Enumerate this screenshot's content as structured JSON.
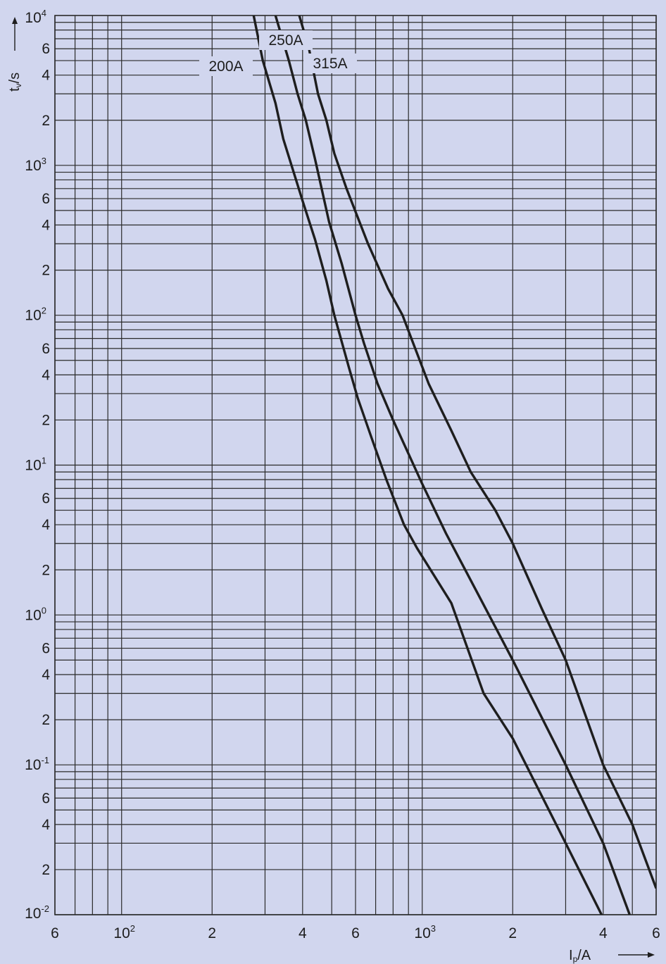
{
  "chart_data": {
    "type": "line",
    "x_scale": "log",
    "y_scale": "log",
    "xlim": [
      60,
      6000
    ],
    "ylim": [
      0.01,
      10000
    ],
    "grid": true,
    "x_tick_labels": [
      {
        "x": 60,
        "text": "6"
      },
      {
        "x": 100,
        "base": "10",
        "exp": "2"
      },
      {
        "x": 200,
        "text": "2"
      },
      {
        "x": 400,
        "text": "4"
      },
      {
        "x": 600,
        "text": "6"
      },
      {
        "x": 1000,
        "base": "10",
        "exp": "3"
      },
      {
        "x": 2000,
        "text": "2"
      },
      {
        "x": 4000,
        "text": "4"
      },
      {
        "x": 6000,
        "text": "6"
      }
    ],
    "y_tick_labels": [
      {
        "y": 10000,
        "base": "10",
        "exp": "4"
      },
      {
        "y": 6000,
        "text": "6"
      },
      {
        "y": 4000,
        "text": "4"
      },
      {
        "y": 2000,
        "text": "2"
      },
      {
        "y": 1000,
        "base": "10",
        "exp": "3"
      },
      {
        "y": 600,
        "text": "6"
      },
      {
        "y": 400,
        "text": "4"
      },
      {
        "y": 200,
        "text": "2"
      },
      {
        "y": 100,
        "base": "10",
        "exp": "2"
      },
      {
        "y": 60,
        "text": "6"
      },
      {
        "y": 40,
        "text": "4"
      },
      {
        "y": 20,
        "text": "2"
      },
      {
        "y": 10,
        "base": "10",
        "exp": "1"
      },
      {
        "y": 6,
        "text": "6"
      },
      {
        "y": 4,
        "text": "4"
      },
      {
        "y": 2,
        "text": "2"
      },
      {
        "y": 1,
        "base": "10",
        "exp": "0"
      },
      {
        "y": 0.6,
        "text": "6"
      },
      {
        "y": 0.4,
        "text": "4"
      },
      {
        "y": 0.2,
        "text": "2"
      },
      {
        "y": 0.1,
        "base": "10",
        "exp": "-1"
      },
      {
        "y": 0.06,
        "text": "6"
      },
      {
        "y": 0.04,
        "text": "4"
      },
      {
        "y": 0.02,
        "text": "2"
      },
      {
        "y": 0.01,
        "base": "10",
        "exp": "-2"
      }
    ],
    "xlabel": {
      "main": "I",
      "sub": "p",
      "rest": "/A"
    },
    "ylabel": {
      "main": "t",
      "sub": "v",
      "rest": "/s"
    },
    "series": [
      {
        "name": "200A",
        "points": [
          [
            275,
            10000
          ],
          [
            295,
            5000
          ],
          [
            325,
            2600
          ],
          [
            345,
            1500
          ],
          [
            400,
            580
          ],
          [
            440,
            320
          ],
          [
            480,
            170
          ],
          [
            510,
            100
          ],
          [
            570,
            45
          ],
          [
            610,
            28
          ],
          [
            680,
            15
          ],
          [
            760,
            8
          ],
          [
            870,
            4
          ],
          [
            960,
            2.8
          ],
          [
            1250,
            1.2
          ],
          [
            1600,
            0.3
          ],
          [
            2000,
            0.15
          ],
          [
            3000,
            0.03
          ],
          [
            3950,
            0.01
          ]
        ]
      },
      {
        "name": "250A",
        "points": [
          [
            325,
            10000
          ],
          [
            360,
            5000
          ],
          [
            385,
            3000
          ],
          [
            410,
            2000
          ],
          [
            440,
            1100
          ],
          [
            490,
            420
          ],
          [
            540,
            220
          ],
          [
            600,
            100
          ],
          [
            640,
            65
          ],
          [
            710,
            35
          ],
          [
            800,
            20
          ],
          [
            1000,
            7.5
          ],
          [
            1200,
            3.5
          ],
          [
            1500,
            1.5
          ],
          [
            2000,
            0.5
          ],
          [
            3000,
            0.1
          ],
          [
            4000,
            0.03
          ],
          [
            4900,
            0.01
          ]
        ]
      },
      {
        "name": "315A",
        "points": [
          [
            390,
            10000
          ],
          [
            420,
            6000
          ],
          [
            450,
            3000
          ],
          [
            480,
            2000
          ],
          [
            510,
            1200
          ],
          [
            560,
            700
          ],
          [
            660,
            300
          ],
          [
            770,
            150
          ],
          [
            860,
            100
          ],
          [
            920,
            70
          ],
          [
            1050,
            35
          ],
          [
            1250,
            17
          ],
          [
            1450,
            9
          ],
          [
            1750,
            5
          ],
          [
            2000,
            3
          ],
          [
            2500,
            1.1
          ],
          [
            3000,
            0.5
          ],
          [
            4000,
            0.1
          ],
          [
            5000,
            0.04
          ],
          [
            6000,
            0.015
          ]
        ]
      }
    ]
  }
}
